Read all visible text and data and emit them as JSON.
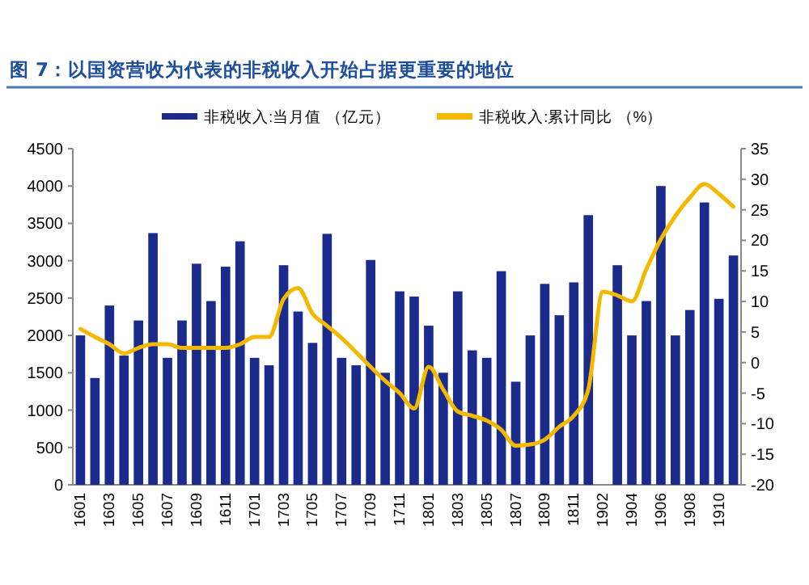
{
  "chart_data": {
    "type": "bar",
    "title": "图 7：以国资营收为代表的非税收入开始占据更重要的地位",
    "categories": [
      "1601",
      null,
      "1603",
      null,
      "1605",
      null,
      "1607",
      null,
      "1609",
      null,
      "1611",
      null,
      "1701",
      null,
      "1703",
      null,
      "1705",
      null,
      "1707",
      null,
      "1709",
      null,
      "1711",
      null,
      "1801",
      null,
      "1803",
      null,
      "1805",
      null,
      "1807",
      null,
      "1809",
      null,
      "1811",
      null,
      "1902",
      null,
      "1904",
      null,
      "1906",
      null,
      "1908",
      null,
      "1910",
      null
    ],
    "series": [
      {
        "name": "非税收入:当月值 （亿元）",
        "color": "#1a2b8c",
        "values": [
          2000,
          1430,
          2400,
          1730,
          2200,
          3370,
          1700,
          2200,
          2960,
          2460,
          2920,
          3260,
          1700,
          1600,
          2940,
          2320,
          1900,
          3360,
          1700,
          1600,
          3010,
          1500,
          2590,
          2520,
          2130,
          1500,
          2590,
          1800,
          1700,
          2860,
          1380,
          2000,
          2690,
          2270,
          2710,
          3610,
          null,
          2940,
          2000,
          2460,
          4000,
          2000,
          2340,
          3780,
          2490,
          3070
        ]
      },
      {
        "name": "非税收入:累计同比 （%）",
        "type": "line",
        "axis": "y2",
        "color": "#f5b800",
        "values": [
          5.5,
          4.2,
          3,
          1.5,
          2.4,
          3,
          3,
          2.4,
          2.4,
          2.4,
          2.4,
          3,
          4.2,
          4.2,
          10.4,
          12.2,
          8,
          6,
          4,
          1.7,
          -0.7,
          -3,
          -5,
          -7.5,
          -0.7,
          -4.4,
          -8,
          -8.7,
          -9.5,
          -11,
          -13.6,
          -13.4,
          -12.6,
          -10.5,
          -8.7,
          -4.4,
          11.6,
          11,
          10,
          15.3,
          20.2,
          24,
          27,
          29.2,
          27.6,
          25.5
        ]
      }
    ],
    "ylim": [
      0,
      4500
    ],
    "yticks": [
      0,
      500,
      1000,
      1500,
      2000,
      2500,
      3000,
      3500,
      4000,
      4500
    ],
    "y2lim": [
      -20,
      35
    ],
    "y2ticks": [
      -20,
      -15,
      -10,
      -5,
      0,
      5,
      10,
      15,
      20,
      25,
      30,
      35
    ],
    "legend": "top",
    "grid": false
  }
}
